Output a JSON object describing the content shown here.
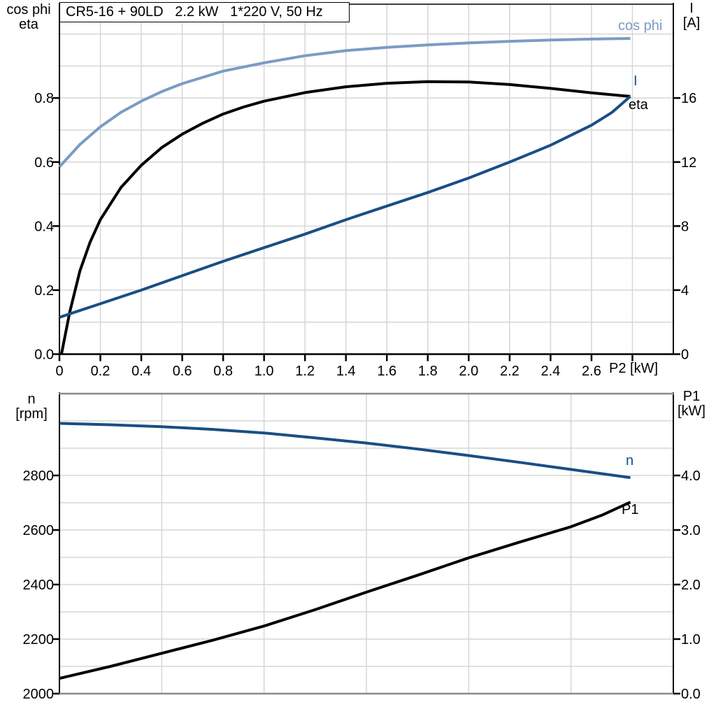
{
  "title": "CR5-16 + 90LD   2.2 kW   1*220 V, 50 Hz",
  "colors": {
    "light_blue": "#7A9CC4",
    "dark_blue": "#1A4E85",
    "black": "#000000",
    "grid": "#D6D6D6",
    "frame_gray": "#8A8A8A"
  },
  "axis_corner_labels": {
    "top_left_line1": "cos phi",
    "top_left_line2": "eta",
    "top_right_line1": "I",
    "top_right_line2": "[A]",
    "bottom_left_line1": "n",
    "bottom_left_line2": "[rpm]",
    "bottom_right_line1": "P1",
    "bottom_right_line2": "[kW]",
    "x_axis_label": "P2 [kW]"
  },
  "curve_labels": {
    "cos_phi": "cos phi",
    "current": "I",
    "eta": "eta",
    "speed": "n",
    "power_in": "P1"
  },
  "chart_data": [
    {
      "type": "line",
      "title": "CR5-16 + 90LD   2.2 kW   1*220 V, 50 Hz",
      "xlabel": "P2 [kW]",
      "ylabel_left": "cos phi / eta",
      "ylabel_right": "I [A]",
      "xlim": [
        0,
        3.0
      ],
      "ylim_left": [
        0,
        1.093
      ],
      "ylim_right": [
        0,
        21.86
      ],
      "grid": "on",
      "legend_position": "inline-right",
      "x_tick_vals": [
        0,
        0.2,
        0.4,
        0.6,
        0.8,
        1.0,
        1.2,
        1.4,
        1.6,
        1.8,
        2.0,
        2.2,
        2.4,
        2.6,
        2.8
      ],
      "x_tick_labels": [
        "0",
        "0.2",
        "0.4",
        "0.6",
        "0.8",
        "1.0",
        "1.2",
        "1.4",
        "1.6",
        "1.8",
        "2.0",
        "2.2",
        "2.4",
        "2.6",
        ""
      ],
      "left_tick_vals": [
        0,
        0.2,
        0.4,
        0.6,
        0.8
      ],
      "left_tick_labels": [
        "0.0",
        "0.2",
        "0.4",
        "0.6",
        "0.8"
      ],
      "right_tick_vals": [
        0,
        4,
        8,
        12,
        16
      ],
      "right_tick_labels": [
        "0",
        "4",
        "8",
        "12",
        "16"
      ],
      "x_grid": [
        0.2,
        0.4,
        0.6,
        0.8,
        1.0,
        1.2,
        1.4,
        1.6,
        1.8,
        2.0,
        2.2,
        2.4,
        2.6,
        2.8
      ],
      "y_grid": [
        0.1,
        0.2,
        0.3,
        0.4,
        0.5,
        0.6,
        0.7,
        0.8,
        0.9,
        1.0
      ],
      "series": [
        {
          "name": "cos phi",
          "axis": "left",
          "color": "#7A9CC4",
          "x": [
            0,
            0.1,
            0.2,
            0.3,
            0.4,
            0.5,
            0.6,
            0.8,
            1.0,
            1.2,
            1.4,
            1.6,
            1.8,
            2.0,
            2.2,
            2.4,
            2.6,
            2.79
          ],
          "y": [
            0.585,
            0.655,
            0.71,
            0.755,
            0.79,
            0.82,
            0.845,
            0.884,
            0.91,
            0.932,
            0.948,
            0.958,
            0.966,
            0.972,
            0.977,
            0.981,
            0.984,
            0.986
          ]
        },
        {
          "name": "eta",
          "axis": "left",
          "color": "#000000",
          "x": [
            0.01,
            0.05,
            0.1,
            0.15,
            0.2,
            0.3,
            0.4,
            0.5,
            0.6,
            0.7,
            0.8,
            0.9,
            1.0,
            1.2,
            1.4,
            1.6,
            1.8,
            2.0,
            2.2,
            2.4,
            2.6,
            2.79
          ],
          "y": [
            0,
            0.13,
            0.26,
            0.35,
            0.42,
            0.52,
            0.59,
            0.645,
            0.687,
            0.721,
            0.75,
            0.772,
            0.79,
            0.817,
            0.835,
            0.846,
            0.851,
            0.85,
            0.842,
            0.83,
            0.816,
            0.805
          ]
        },
        {
          "name": "I",
          "axis": "right",
          "color": "#1A4E85",
          "x": [
            0,
            0.2,
            0.4,
            0.6,
            0.8,
            1.0,
            1.2,
            1.4,
            1.6,
            1.8,
            2.0,
            2.2,
            2.4,
            2.6,
            2.7,
            2.79
          ],
          "y": [
            2.3,
            3.15,
            4.0,
            4.9,
            5.8,
            6.65,
            7.5,
            8.4,
            9.25,
            10.1,
            11.0,
            12.0,
            13.05,
            14.3,
            15.1,
            16.1
          ]
        }
      ]
    },
    {
      "type": "line",
      "title": "",
      "xlabel": "",
      "ylabel_left": "n [rpm]",
      "ylabel_right": "P1 [kW]",
      "xlim": [
        0,
        3.0
      ],
      "ylim_left": [
        2000,
        3100
      ],
      "ylim_right": [
        0,
        5.5
      ],
      "grid": "on",
      "legend_position": "inline-right",
      "x_tick_vals": [],
      "x_tick_labels": [],
      "left_tick_vals": [
        2000,
        2200,
        2400,
        2600,
        2800
      ],
      "left_tick_labels": [
        "2000",
        "2200",
        "2400",
        "2600",
        "2800"
      ],
      "right_tick_vals": [
        0,
        1,
        2,
        3,
        4
      ],
      "right_tick_labels": [
        "0.0",
        "1.0",
        "2.0",
        "3.0",
        "4.0"
      ],
      "x_grid": [
        0.5,
        1.0,
        1.5,
        2.0,
        2.5
      ],
      "y_grid": [
        2100,
        2200,
        2300,
        2400,
        2500,
        2600,
        2700,
        2800,
        2900,
        3000
      ],
      "series": [
        {
          "name": "n",
          "axis": "left",
          "color": "#1A4E85",
          "x": [
            0,
            0.25,
            0.5,
            0.75,
            1.0,
            1.25,
            1.5,
            1.75,
            2.0,
            2.25,
            2.5,
            2.79
          ],
          "y": [
            2991,
            2986,
            2979,
            2969,
            2956,
            2938,
            2919,
            2897,
            2873,
            2848,
            2822,
            2792
          ]
        },
        {
          "name": "P1",
          "axis": "right",
          "color": "#000000",
          "x": [
            0,
            0.25,
            0.5,
            0.75,
            1.0,
            1.25,
            1.5,
            1.75,
            2.0,
            2.25,
            2.5,
            2.65,
            2.79
          ],
          "y": [
            0.28,
            0.5,
            0.74,
            0.98,
            1.24,
            1.54,
            1.86,
            2.17,
            2.49,
            2.78,
            3.06,
            3.27,
            3.51
          ]
        }
      ]
    }
  ]
}
